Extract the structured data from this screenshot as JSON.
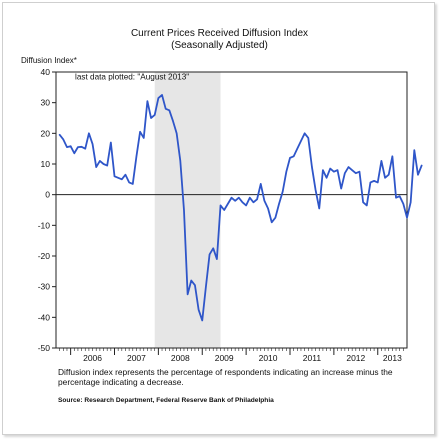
{
  "chart_data": {
    "type": "line",
    "title": "Current Prices Received Diffusion Index",
    "subtitle": "(Seasonally Adjusted)",
    "ylabel": "Diffusion Index*",
    "xlabel": "",
    "ylim": [
      -50,
      40
    ],
    "yticks": [
      40,
      30,
      20,
      10,
      0,
      -10,
      -20,
      -30,
      -40,
      -50
    ],
    "year_labels": [
      "2006",
      "2007",
      "2008",
      "2009",
      "2010",
      "2011",
      "2012",
      "2013"
    ],
    "x_start": "2005-09",
    "x_end": "2013-09",
    "annotation": "last data plotted: \"August 2013\"",
    "shaded_period": [
      "2007-12",
      "2009-06"
    ],
    "zero_line": true,
    "line_color": "#2f56c9",
    "shade_color": "#e6e6e6",
    "series": [
      {
        "values": [
          19.5,
          18.0,
          15.5,
          15.8,
          13.5,
          15.5,
          15.6,
          15.0,
          20.0,
          16.5,
          9.0,
          11.0,
          10.0,
          9.5,
          17.0,
          6.0,
          5.5,
          5.0,
          6.5,
          4.0,
          3.5,
          12.5,
          20.5,
          18.5,
          30.5,
          25.0,
          26.0,
          31.5,
          32.5,
          28.0,
          27.5,
          24.0,
          20.0,
          11.0,
          -5.0,
          -32.5,
          -28.0,
          -29.5,
          -37.5,
          -41.0,
          -30.0,
          -19.5,
          -17.5,
          -21.0,
          -3.5,
          -5.0,
          -3.0,
          -1.0,
          -2.0,
          -1.0,
          -2.5,
          -3.5,
          -1.0,
          -2.5,
          -1.5,
          3.5,
          -2.0,
          -4.5,
          -9.0,
          -7.5,
          -3.0,
          1.0,
          7.5,
          12.0,
          12.5,
          15.0,
          17.5,
          20.0,
          18.5,
          9.0,
          1.5,
          -4.5,
          8.0,
          5.5,
          8.5,
          7.5,
          8.0,
          2.0,
          7.0,
          9.0,
          8.0,
          7.0,
          7.5,
          -2.5,
          -3.5,
          4.0,
          4.5,
          4.0,
          11.0,
          5.5,
          6.5,
          12.5,
          -1.0,
          -0.5,
          -3.0,
          -7.5,
          -2.5,
          14.5,
          6.5,
          9.5
        ]
      }
    ]
  },
  "footnote": "Diffusion index represents the percentage of respondents indicating an increase minus the percentage indicating a decrease.",
  "source": "Source: Research Department, Federal Reserve Bank of Philadelphia"
}
